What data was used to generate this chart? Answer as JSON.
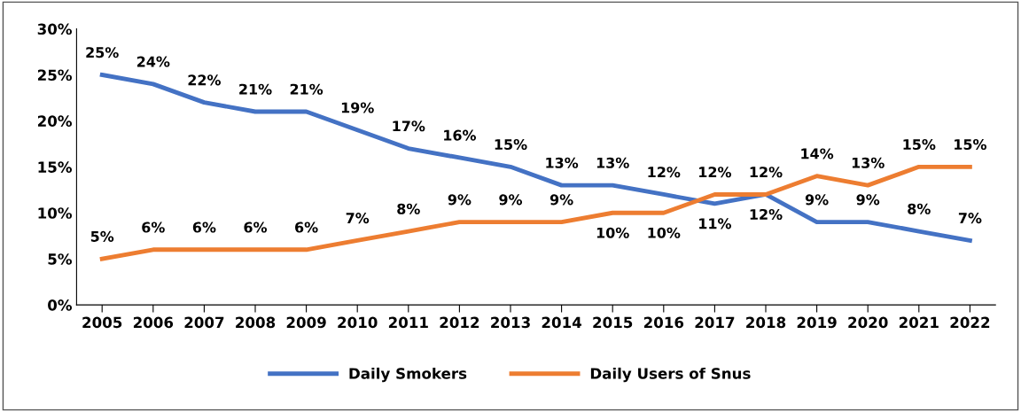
{
  "chart_data": {
    "type": "line",
    "categories": [
      "2005",
      "2006",
      "2007",
      "2008",
      "2009",
      "2010",
      "2011",
      "2012",
      "2013",
      "2014",
      "2015",
      "2016",
      "2017",
      "2018",
      "2019",
      "2020",
      "2021",
      "2022"
    ],
    "series": [
      {
        "name": "Daily Smokers",
        "color": "#4472c4",
        "values": [
          25,
          24,
          22,
          21,
          21,
          19,
          17,
          16,
          15,
          13,
          13,
          12,
          11,
          12,
          9,
          9,
          8,
          7
        ],
        "value_labels": [
          "25%",
          "24%",
          "22%",
          "21%",
          "21%",
          "19%",
          "17%",
          "16%",
          "15%",
          "13%",
          "13%",
          "12%",
          "11%",
          "12%",
          "9%",
          "9%",
          "8%",
          "7%"
        ]
      },
      {
        "name": "Daily Users of Snus",
        "color": "#ed7d31",
        "values": [
          5,
          6,
          6,
          6,
          6,
          7,
          8,
          9,
          9,
          9,
          10,
          10,
          12,
          12,
          14,
          13,
          15,
          15
        ],
        "value_labels": [
          "5%",
          "6%",
          "6%",
          "6%",
          "6%",
          "7%",
          "8%",
          "9%",
          "9%",
          "9%",
          "10%",
          "10%",
          "12%",
          "12%",
          "14%",
          "13%",
          "15%",
          "15%"
        ]
      }
    ],
    "ylim": [
      0,
      30
    ],
    "yticks": [
      {
        "value": 0,
        "label": "0%"
      },
      {
        "value": 5,
        "label": "5%"
      },
      {
        "value": 10,
        "label": "10%"
      },
      {
        "value": 15,
        "label": "15%"
      },
      {
        "value": 20,
        "label": "20%"
      },
      {
        "value": 25,
        "label": "25%"
      },
      {
        "value": 30,
        "label": "30%"
      }
    ],
    "grid": false,
    "legend": "bottom",
    "marker": "none",
    "line_style": "solid"
  }
}
